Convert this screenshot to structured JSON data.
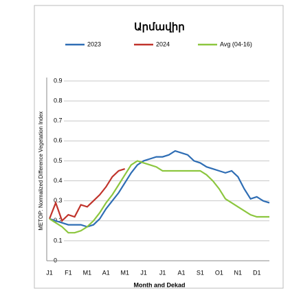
{
  "chart_data": {
    "type": "line",
    "title": "Արմավիր",
    "ylabel": "METOP: Normalized Difference Vegetation Index",
    "xlabel": "Month and Dekad",
    "categories": [
      "J1",
      null,
      null,
      "F1",
      null,
      null,
      "M1",
      null,
      null,
      "A1",
      null,
      null,
      "M1",
      null,
      null,
      "J1",
      null,
      null,
      "J1",
      null,
      null,
      "A1",
      null,
      null,
      "S1",
      null,
      null,
      "O1",
      null,
      null,
      "N1",
      null,
      null,
      "D1",
      null,
      null
    ],
    "series": [
      {
        "name": "2023",
        "color": "#2e6db4",
        "values": [
          0.21,
          0.2,
          0.19,
          0.18,
          0.18,
          0.18,
          0.17,
          0.18,
          0.21,
          0.26,
          0.3,
          0.34,
          0.39,
          0.44,
          0.48,
          0.5,
          0.51,
          0.52,
          0.52,
          0.53,
          0.55,
          0.54,
          0.53,
          0.5,
          0.49,
          0.47,
          0.46,
          0.45,
          0.44,
          0.45,
          0.42,
          0.36,
          0.31,
          0.32,
          0.3,
          0.29
        ]
      },
      {
        "name": "2024",
        "color": "#c0332b",
        "values": [
          0.21,
          0.29,
          0.2,
          0.23,
          0.22,
          0.28,
          0.27,
          0.3,
          0.33,
          0.37,
          0.42,
          0.45,
          0.46,
          null,
          null,
          null,
          null,
          null,
          null,
          null,
          null,
          null,
          null,
          null,
          null,
          null,
          null,
          null,
          null,
          null,
          null,
          null,
          null,
          null,
          null,
          null
        ]
      },
      {
        "name": "Avg (04-16)",
        "color": "#8cc63e",
        "values": [
          0.21,
          0.19,
          0.17,
          0.14,
          0.14,
          0.15,
          0.17,
          0.2,
          0.24,
          0.29,
          0.33,
          0.38,
          0.43,
          0.48,
          0.5,
          0.49,
          0.48,
          0.47,
          0.45,
          0.45,
          0.45,
          0.45,
          0.45,
          0.45,
          0.45,
          0.43,
          0.4,
          0.36,
          0.31,
          0.29,
          0.27,
          0.25,
          0.23,
          0.22,
          0.22,
          0.22
        ]
      }
    ],
    "ylim": [
      0,
      0.9
    ],
    "yticks": [
      0,
      0.1,
      0.2,
      0.3,
      0.4,
      0.5,
      0.6,
      0.7,
      0.8,
      0.9
    ],
    "grid": true
  }
}
